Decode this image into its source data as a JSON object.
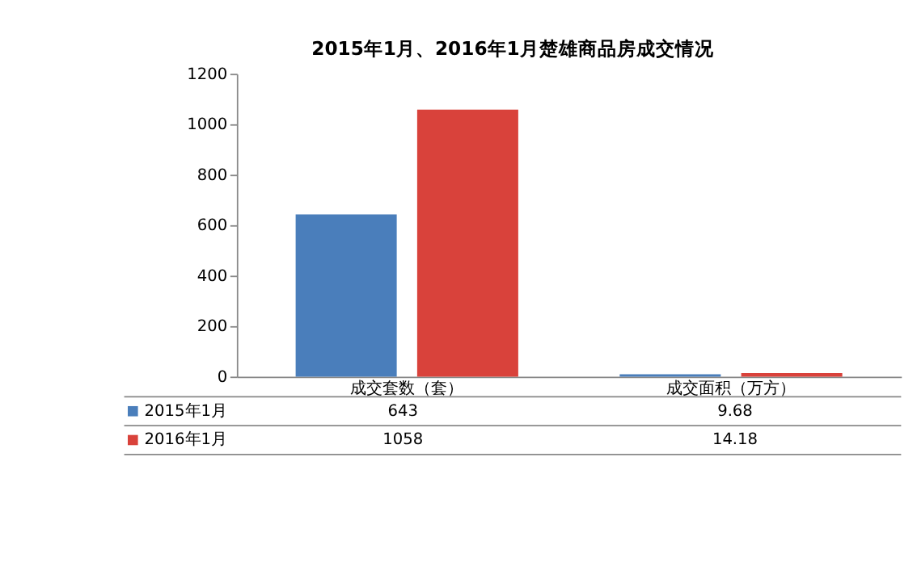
{
  "chart_data": {
    "type": "bar",
    "title": "2015年1月、2016年1月楚雄商品房成交情况",
    "categories": [
      "成交套数（套）",
      "成交面积（万方）"
    ],
    "series": [
      {
        "name": "2015年1月",
        "color": "#4a7ebb",
        "values": [
          643,
          9.68
        ]
      },
      {
        "name": "2016年1月",
        "color": "#d9423b",
        "values": [
          1058,
          14.18
        ]
      }
    ],
    "ylim": [
      0,
      1200
    ],
    "yticks": [
      0,
      200,
      400,
      600,
      800,
      1000,
      1200
    ],
    "grid": false,
    "legend": "bottom",
    "data_labels": true
  }
}
